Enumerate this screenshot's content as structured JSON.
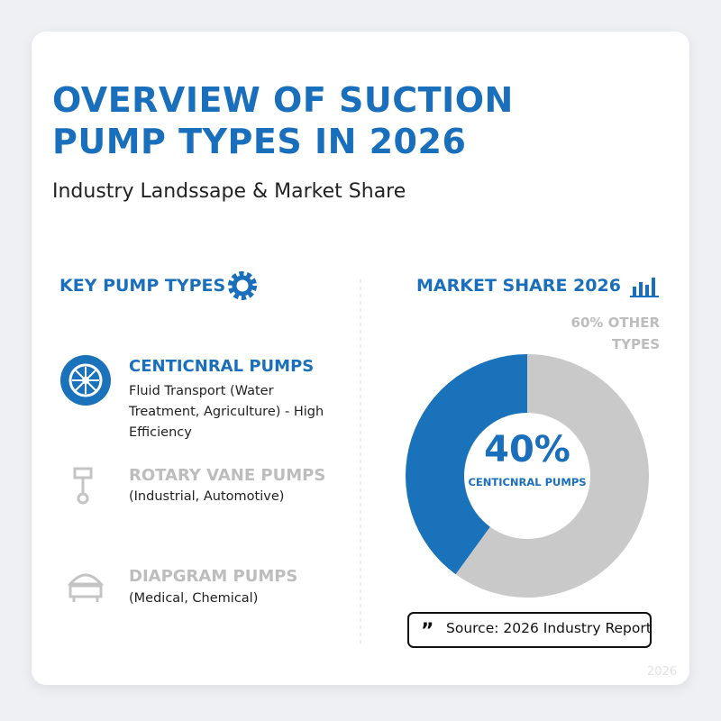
{
  "header": {
    "title": "OVERVIEW OF SUCTION PUMP TYPES IN 2026",
    "subtitle": "Industry Landssape & Market Share"
  },
  "pump_types": {
    "heading": "KEY PUMP TYPES",
    "items": [
      {
        "name": "CENTICNRAL PUMPS",
        "description": "Fluid Transport (Water Treatment, Agriculture) - High Efficiency"
      },
      {
        "name": "ROTARY VANE PUMPS",
        "description": "(Industrial, Automotive)"
      },
      {
        "name": "DIAPGRAM PUMPS",
        "description": "(Medical, Chemical)"
      }
    ]
  },
  "market_share": {
    "heading": "MARKET SHARE 2026",
    "source": "Source: 2026 Industry Report"
  },
  "chart_data": {
    "type": "donut",
    "categories": [
      "CENTICNRAL PUMPS",
      null
    ],
    "values": [
      40,
      60
    ],
    "value_labels": [
      "40%",
      "60% OTHER TYPES"
    ],
    "colors": [
      "#1a72bb",
      "#c9c9c9"
    ]
  },
  "footer": {
    "year": "2026"
  }
}
